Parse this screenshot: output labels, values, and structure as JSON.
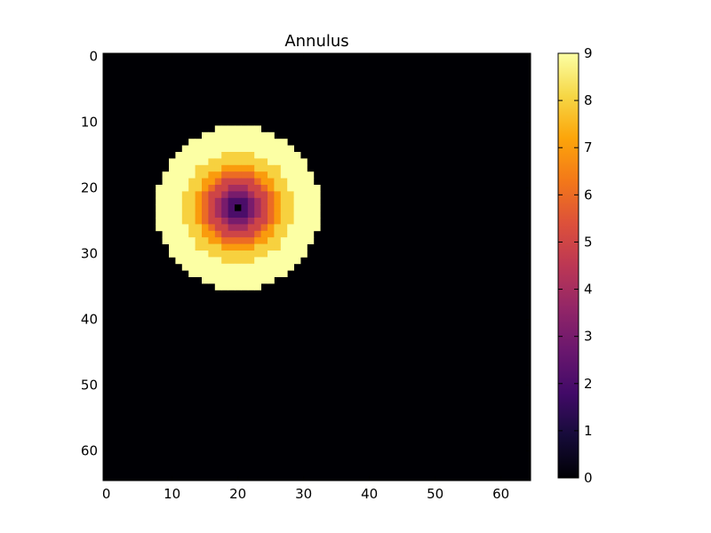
{
  "chart_data": {
    "type": "heatmap",
    "title": "Annulus",
    "xlabel": "",
    "ylabel": "",
    "grid": false,
    "grid_size": [
      65,
      65
    ],
    "xlim": [
      0,
      65
    ],
    "ylim": [
      65,
      0
    ],
    "x_ticks": [
      0,
      10,
      20,
      30,
      40,
      50,
      60
    ],
    "y_ticks": [
      0,
      10,
      20,
      30,
      40,
      50,
      60
    ],
    "colorbar": {
      "min": 0,
      "max": 9,
      "ticks": [
        0,
        1,
        2,
        3,
        4,
        5,
        6,
        7,
        8,
        9
      ],
      "colormap": "inferno"
    },
    "background_value": 0,
    "disk": {
      "center_col": 20,
      "center_row": 23,
      "cell_values_by_integer_radius": [
        0,
        2,
        3,
        4,
        5,
        6,
        7,
        8,
        8,
        9,
        9,
        9,
        9
      ],
      "outside_value": 0
    }
  }
}
